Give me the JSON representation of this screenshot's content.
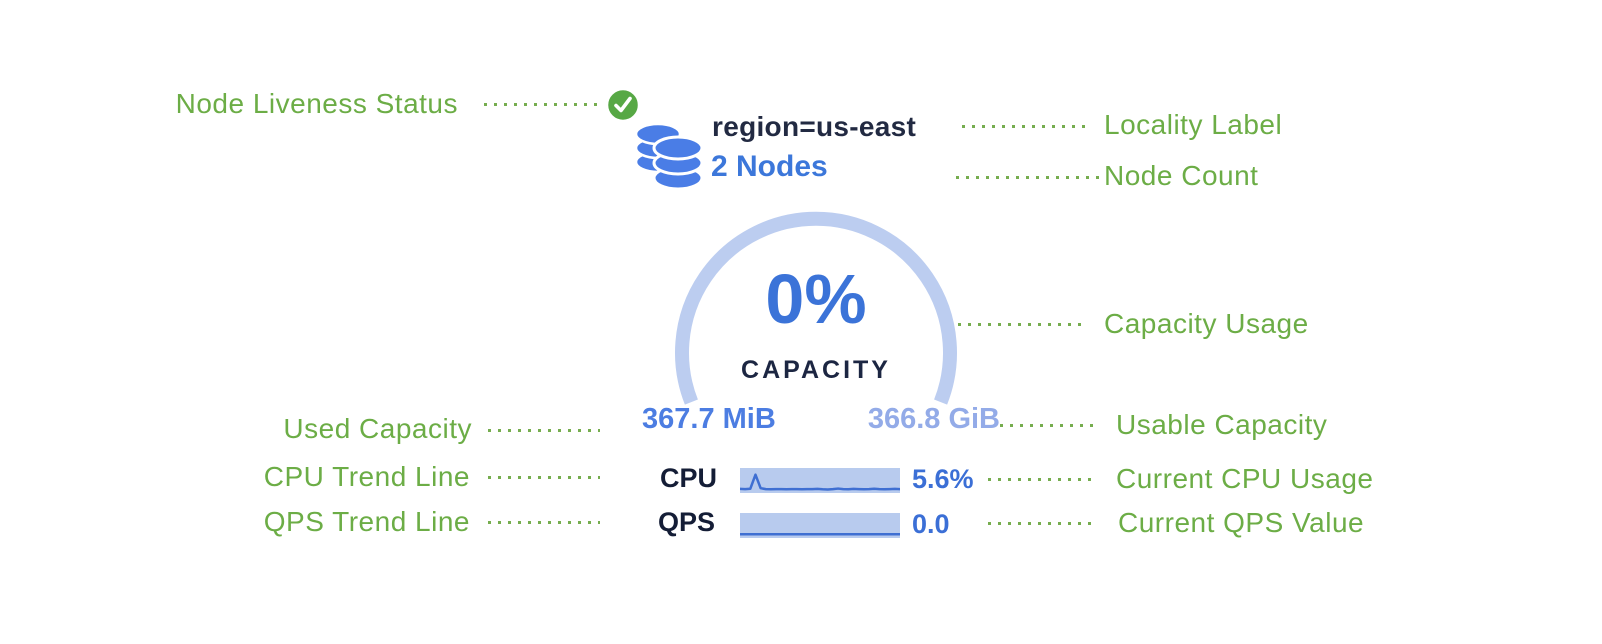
{
  "annotations": {
    "left": [
      {
        "label": "Node Liveness Status"
      },
      {
        "label": "Used Capacity"
      },
      {
        "label": "CPU Trend Line"
      },
      {
        "label": "QPS Trend Line"
      }
    ],
    "right": [
      {
        "label": "Locality Label"
      },
      {
        "label": "Node Count"
      },
      {
        "label": "Capacity Usage"
      },
      {
        "label": "Usable Capacity"
      },
      {
        "label": "Current CPU Usage"
      },
      {
        "label": "Current QPS Value"
      }
    ]
  },
  "node_card": {
    "liveness_status": "live",
    "locality_label": "region=us-east",
    "node_count": "2 Nodes",
    "capacity": {
      "percent": "0%",
      "caption": "CAPACITY",
      "used": "367.7 MiB",
      "usable": "366.8 GiB"
    },
    "cpu": {
      "label": "CPU",
      "value": "5.6%"
    },
    "qps": {
      "label": "QPS",
      "value": "0.0"
    }
  },
  "colors": {
    "annotation_green": "#6cad46",
    "status_green": "#57a845",
    "db_icon_blue": "#4a7de6",
    "gauge_track": "#bccdf0",
    "percent_blue": "#3b73d8",
    "used_blue": "#4c7de2",
    "usable_blue": "#93abe8",
    "spark_bg": "#b8cbee",
    "spark_line": "#3f6fd2"
  },
  "chart_data": [
    {
      "type": "line",
      "name": "cpu-trend-sparkline",
      "label": "CPU",
      "current_value": "5.6%",
      "y_range": [
        0,
        1
      ],
      "y_normalized": [
        0.06,
        0.05,
        0.07,
        0.85,
        0.1,
        0.05,
        0.04,
        0.05,
        0.05,
        0.04,
        0.05,
        0.05,
        0.04,
        0.05,
        0.05,
        0.06,
        0.04,
        0.03,
        0.05,
        0.08,
        0.05,
        0.04,
        0.06,
        0.05,
        0.04,
        0.05,
        0.07,
        0.05,
        0.04,
        0.05,
        0.06,
        0.05
      ]
    },
    {
      "type": "line",
      "name": "qps-trend-sparkline",
      "label": "QPS",
      "current_value": "0.0",
      "y_range": [
        0,
        1
      ],
      "y_normalized": [
        0.04,
        0.04,
        0.04,
        0.04,
        0.04,
        0.04,
        0.04,
        0.04,
        0.04,
        0.04,
        0.04,
        0.04,
        0.04,
        0.04,
        0.04,
        0.04,
        0.04,
        0.04,
        0.04,
        0.04,
        0.04,
        0.04,
        0.04,
        0.04,
        0.04,
        0.04,
        0.04,
        0.04,
        0.04,
        0.04,
        0.04,
        0.04
      ]
    }
  ]
}
